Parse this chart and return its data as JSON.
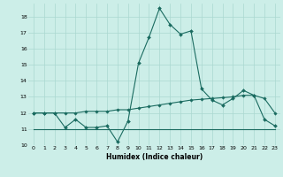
{
  "xlabel": "Humidex (Indice chaleur)",
  "background_color": "#cceee8",
  "grid_color": "#aad8d0",
  "line_color": "#1a6b60",
  "xlim": [
    -0.5,
    23.5
  ],
  "ylim": [
    10,
    18.8
  ],
  "yticks": [
    10,
    11,
    12,
    13,
    14,
    15,
    16,
    17,
    18
  ],
  "xticks": [
    0,
    1,
    2,
    3,
    4,
    5,
    6,
    7,
    8,
    9,
    10,
    11,
    12,
    13,
    14,
    15,
    16,
    17,
    18,
    19,
    20,
    21,
    22,
    23
  ],
  "line1_x": [
    0,
    1,
    2,
    3,
    4,
    5,
    6,
    7,
    8,
    9,
    10,
    11,
    12,
    13,
    14,
    15,
    16,
    17,
    18,
    19,
    20,
    21,
    22,
    23
  ],
  "line1_y": [
    12.0,
    12.0,
    12.0,
    11.1,
    11.6,
    11.1,
    11.1,
    11.2,
    10.2,
    11.5,
    15.1,
    16.7,
    18.5,
    17.5,
    16.9,
    17.1,
    13.5,
    12.8,
    12.5,
    12.9,
    13.4,
    13.1,
    11.6,
    11.2
  ],
  "line2_x": [
    0,
    1,
    2,
    3,
    4,
    5,
    6,
    7,
    8,
    9,
    10,
    11,
    12,
    13,
    14,
    15,
    16,
    17,
    18,
    19,
    20,
    21,
    22,
    23
  ],
  "line2_y": [
    12.0,
    12.0,
    12.0,
    12.0,
    12.0,
    12.1,
    12.1,
    12.1,
    12.2,
    12.2,
    12.3,
    12.4,
    12.5,
    12.6,
    12.7,
    12.8,
    12.85,
    12.9,
    12.95,
    13.0,
    13.1,
    13.1,
    12.9,
    12.0
  ],
  "line3_x": [
    0,
    1,
    2,
    3,
    4,
    5,
    6,
    7,
    8,
    9,
    10,
    11,
    12,
    13,
    14,
    15,
    16,
    17,
    18,
    19,
    20,
    21,
    22,
    23
  ],
  "line3_y": [
    11.0,
    11.0,
    11.0,
    11.0,
    11.0,
    11.0,
    11.0,
    11.0,
    11.0,
    11.0,
    11.0,
    11.0,
    11.0,
    11.0,
    11.0,
    11.0,
    11.0,
    11.0,
    11.0,
    11.0,
    11.0,
    11.0,
    11.0,
    11.0
  ]
}
